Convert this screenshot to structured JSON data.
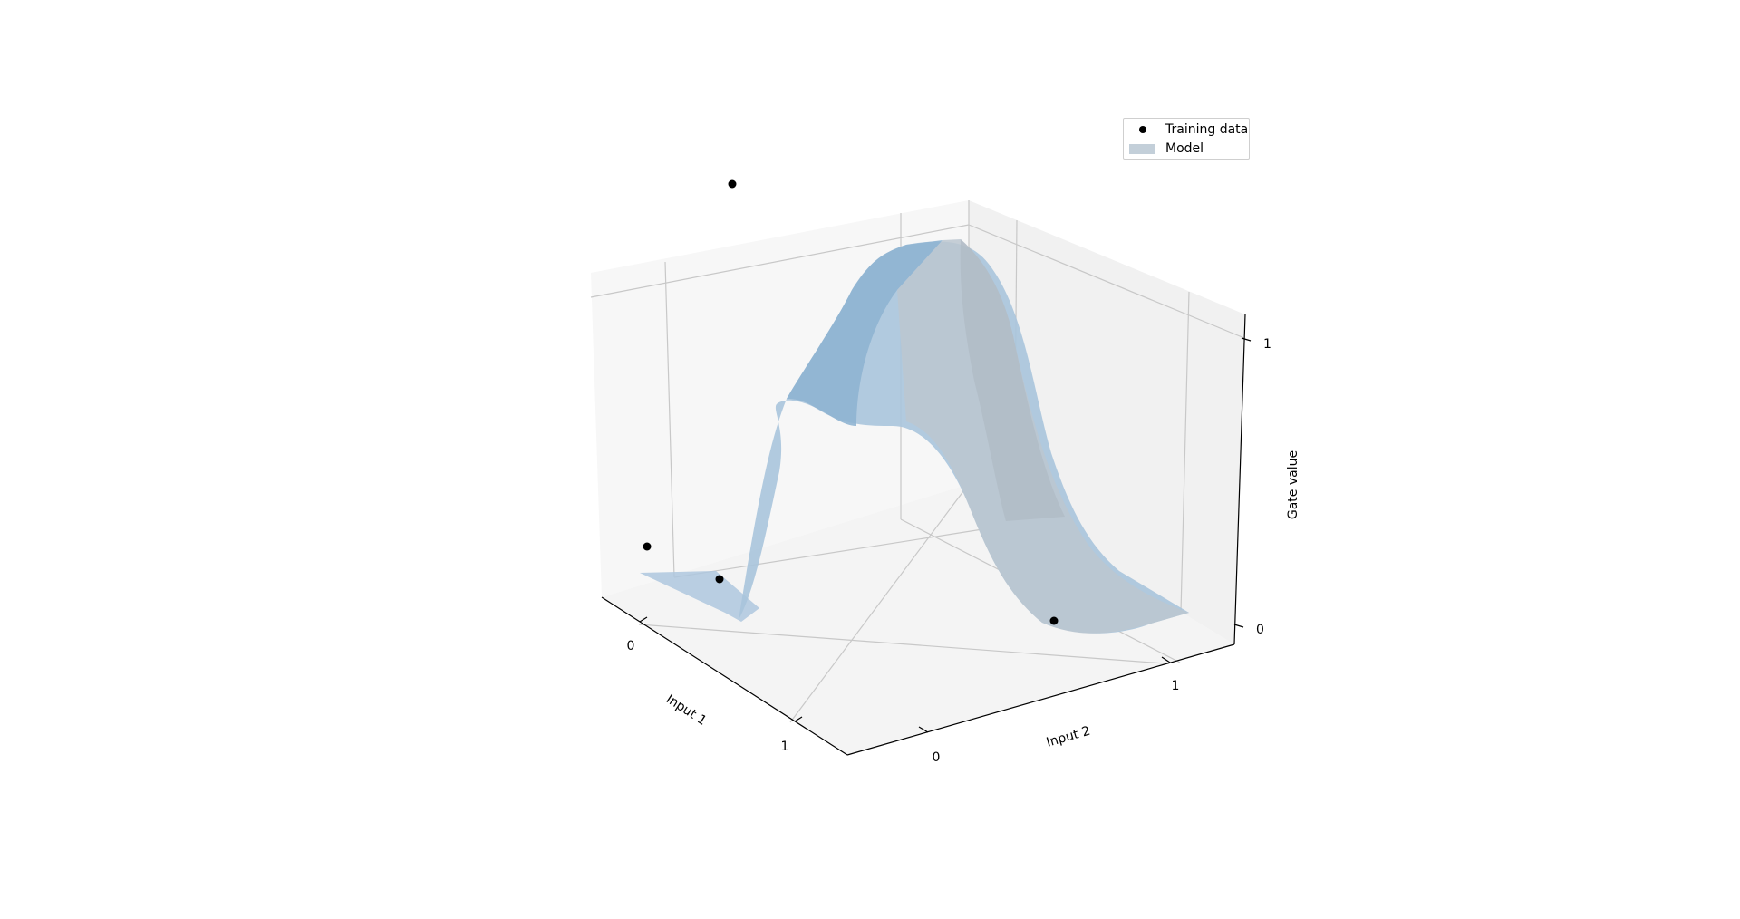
{
  "chart_data": {
    "type": "surface3d",
    "title": "",
    "xlabel": "Input 1",
    "ylabel": "Input 2",
    "zlabel": "Gate value",
    "xticks": [
      "0",
      "1"
    ],
    "yticks": [
      "0",
      "1"
    ],
    "zticks": [
      "0",
      "1"
    ],
    "xlim": [
      -0.2,
      1.2
    ],
    "ylim": [
      -0.2,
      1.2
    ],
    "zlim": [
      -0.1,
      1.2
    ],
    "grid": true,
    "legend": {
      "placement": "top-right",
      "entries": [
        "Training data",
        "Model"
      ]
    },
    "series": [
      {
        "name": "Training data",
        "type": "scatter",
        "color": "#000000",
        "points": [
          {
            "x": 0,
            "y": 0,
            "z": 0
          },
          {
            "x": 0,
            "y": 1,
            "z": 1
          },
          {
            "x": 1,
            "y": 0,
            "z": 1
          },
          {
            "x": 1,
            "y": 1,
            "z": 0
          }
        ]
      },
      {
        "name": "Model",
        "type": "surface",
        "color": "#8fb4d2",
        "legend_color": "#c3cfd9",
        "description_of_shape": "XOR-like ridge peaking along x + y = 1"
      }
    ]
  }
}
